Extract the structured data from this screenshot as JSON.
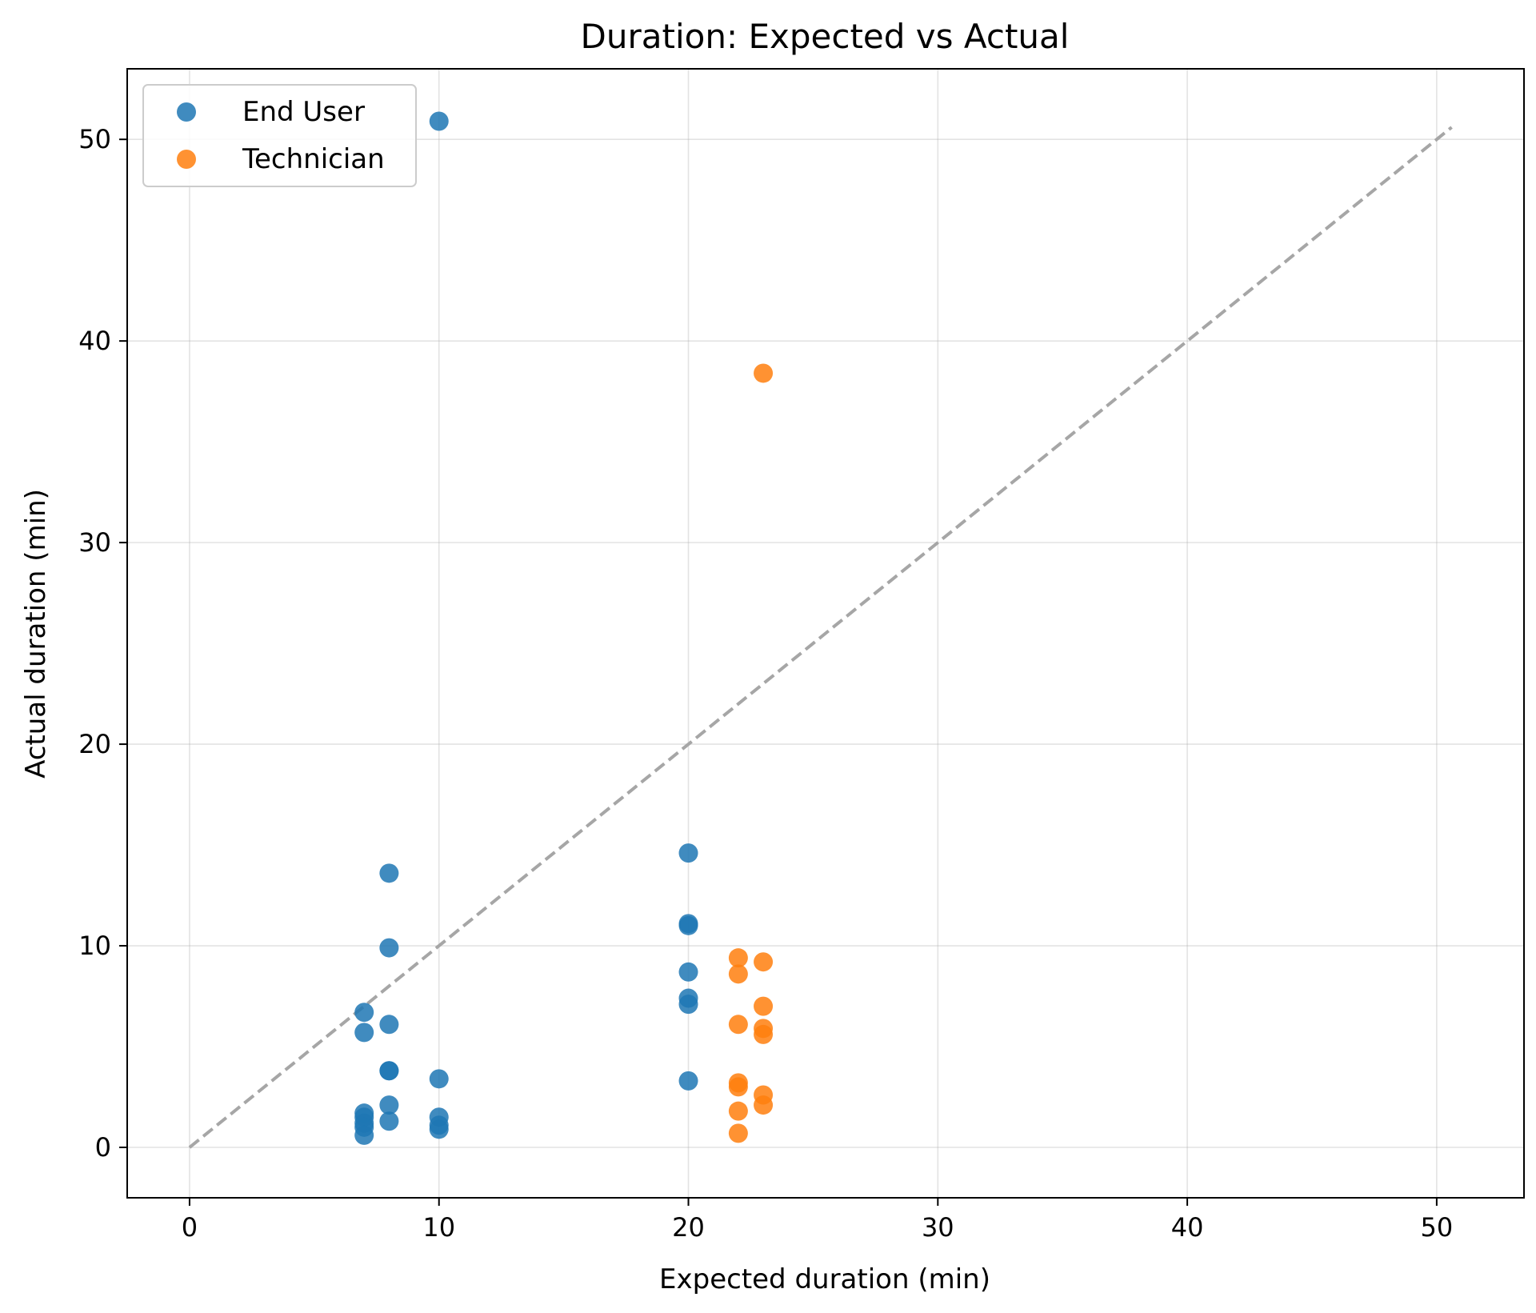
{
  "chart_data": {
    "type": "scatter",
    "title": "Duration: Expected vs Actual",
    "xlabel": "Expected duration (min)",
    "ylabel": "Actual duration (min)",
    "xlim": [
      -2.5,
      53.5
    ],
    "ylim": [
      -2.5,
      53.5
    ],
    "xticks": [
      0,
      10,
      20,
      30,
      40,
      50
    ],
    "yticks": [
      0,
      10,
      20,
      30,
      40,
      50
    ],
    "grid": true,
    "legend_position": "top-left",
    "reference_line": {
      "label": "y = x",
      "from": [
        0,
        0
      ],
      "to": [
        50.6,
        50.6
      ],
      "style": "dashed",
      "color": "#a6a6a6"
    },
    "series": [
      {
        "name": "End User",
        "color": "#1f77b4",
        "points": [
          {
            "x": 10,
            "y": 50.9
          },
          {
            "x": 8,
            "y": 13.6
          },
          {
            "x": 8,
            "y": 9.9
          },
          {
            "x": 8,
            "y": 6.1
          },
          {
            "x": 8,
            "y": 3.8
          },
          {
            "x": 8,
            "y": 3.8
          },
          {
            "x": 8,
            "y": 2.1
          },
          {
            "x": 8,
            "y": 1.3
          },
          {
            "x": 7,
            "y": 6.7
          },
          {
            "x": 7,
            "y": 5.7
          },
          {
            "x": 7,
            "y": 1.7
          },
          {
            "x": 7,
            "y": 1.5
          },
          {
            "x": 7,
            "y": 1.2
          },
          {
            "x": 7,
            "y": 1.0
          },
          {
            "x": 7,
            "y": 0.6
          },
          {
            "x": 10,
            "y": 3.4
          },
          {
            "x": 10,
            "y": 1.5
          },
          {
            "x": 10,
            "y": 1.1
          },
          {
            "x": 10,
            "y": 0.9
          },
          {
            "x": 20,
            "y": 14.6
          },
          {
            "x": 20,
            "y": 11.1
          },
          {
            "x": 20,
            "y": 11.0
          },
          {
            "x": 20,
            "y": 8.7
          },
          {
            "x": 20,
            "y": 7.4
          },
          {
            "x": 20,
            "y": 7.1
          },
          {
            "x": 20,
            "y": 3.3
          }
        ]
      },
      {
        "name": "Technician",
        "color": "#ff7f0e",
        "points": [
          {
            "x": 23,
            "y": 38.4
          },
          {
            "x": 22,
            "y": 9.4
          },
          {
            "x": 23,
            "y": 9.2
          },
          {
            "x": 22,
            "y": 8.6
          },
          {
            "x": 23,
            "y": 7.0
          },
          {
            "x": 22,
            "y": 6.1
          },
          {
            "x": 23,
            "y": 5.9
          },
          {
            "x": 23,
            "y": 5.6
          },
          {
            "x": 22,
            "y": 3.2
          },
          {
            "x": 22,
            "y": 3.0
          },
          {
            "x": 23,
            "y": 2.6
          },
          {
            "x": 23,
            "y": 2.1
          },
          {
            "x": 22,
            "y": 1.8
          },
          {
            "x": 22,
            "y": 0.7
          }
        ]
      }
    ]
  }
}
